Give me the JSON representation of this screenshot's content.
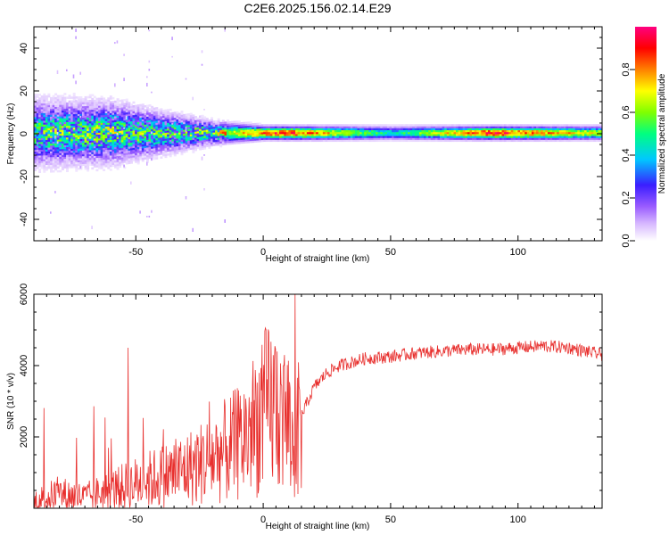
{
  "title": "C2E6.2025.156.02.14.E29",
  "colors": {
    "snr_line": "#e8302e",
    "background": "#ffffff",
    "colormap": [
      "#ffffff",
      "#d7b8ff",
      "#9a5cff",
      "#3a1eff",
      "#00c8ff",
      "#00ff80",
      "#80ff00",
      "#ffff00",
      "#ff8000",
      "#ff0000",
      "#ff0080"
    ]
  },
  "chart_data": [
    {
      "type": "heatmap",
      "xlabel": "Height of straight line (km)",
      "ylabel": "Frequency (Hz)",
      "xlim": [
        -90,
        133
      ],
      "ylim": [
        -50,
        50
      ],
      "xticks": [
        -50,
        0,
        50,
        100
      ],
      "yticks": [
        -40,
        -20,
        0,
        20,
        40
      ],
      "grid": false,
      "colorbar": {
        "label": "Normalized spectral amplitude",
        "range": [
          0,
          1
        ],
        "ticks": [
          "0.0",
          "0.2",
          "0.4",
          "0.6",
          "0.8"
        ]
      },
      "band": [
        {
          "x": -90,
          "halfwidth_hz": 14,
          "peak_amplitude": 0.45
        },
        {
          "x": -60,
          "halfwidth_hz": 13,
          "peak_amplitude": 0.5
        },
        {
          "x": -40,
          "halfwidth_hz": 9,
          "peak_amplitude": 0.45
        },
        {
          "x": -20,
          "halfwidth_hz": 5,
          "peak_amplitude": 0.5
        },
        {
          "x": 0,
          "halfwidth_hz": 3,
          "peak_amplitude": 0.85
        },
        {
          "x": 10,
          "halfwidth_hz": 3,
          "peak_amplitude": 0.9
        },
        {
          "x": 50,
          "halfwidth_hz": 3,
          "peak_amplitude": 0.45
        },
        {
          "x": 90,
          "halfwidth_hz": 3,
          "peak_amplitude": 0.9
        },
        {
          "x": 133,
          "halfwidth_hz": 3,
          "peak_amplitude": 0.65
        }
      ]
    },
    {
      "type": "line",
      "xlabel": "Height of straight line (km)",
      "ylabel": "SNR (10 * v/v)",
      "xlim": [
        -90,
        133
      ],
      "ylim": [
        0,
        6000
      ],
      "xticks": [
        -50,
        0,
        50,
        100
      ],
      "yticks": [
        2000,
        4000,
        6000
      ],
      "grid": false,
      "series": [
        {
          "x": [
            -90,
            -80,
            -70,
            -60,
            -50,
            -40,
            -30,
            -20,
            -10,
            -5,
            0,
            5,
            10,
            12,
            15,
            20,
            25,
            30,
            40,
            50,
            60,
            70,
            80,
            90,
            100,
            110,
            120,
            133
          ],
          "y": [
            200,
            400,
            300,
            500,
            700,
            900,
            1100,
            1400,
            1800,
            2200,
            2700,
            2900,
            2400,
            1500,
            2600,
            3400,
            3800,
            4000,
            4200,
            4250,
            4350,
            4400,
            4450,
            4450,
            4500,
            4550,
            4500,
            4300
          ]
        }
      ],
      "peaks": [
        {
          "x": 12.5,
          "y": 6000
        },
        {
          "x": -53,
          "y": 4500
        },
        {
          "x": 8,
          "y": 4000
        }
      ]
    }
  ]
}
